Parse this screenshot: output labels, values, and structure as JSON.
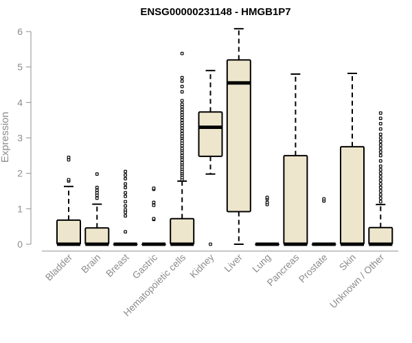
{
  "chart_data": {
    "type": "box",
    "title": "ENSG00000231148 - HMGB1P7",
    "xlabel": "",
    "ylabel": "Expression",
    "ylim": [
      0,
      6.2
    ],
    "yticks": [
      "0",
      "1",
      "2",
      "3",
      "4",
      "5",
      "6"
    ],
    "box_fill": "#ede6cc",
    "categories": [
      "Bladder",
      "Brain",
      "Breast",
      "Gastric",
      "Hematopoietic cells",
      "Kidney",
      "Liver",
      "Lung",
      "Pancreas",
      "Prostate",
      "Skin",
      "Unknown / Other"
    ],
    "boxes": [
      {
        "q1": 0,
        "median": 0,
        "q3": 0.68,
        "whisker_low": 0,
        "whisker_high": 1.63,
        "outliers": [
          1.78,
          1.82,
          2.38,
          2.45
        ]
      },
      {
        "q1": 0,
        "median": 0,
        "q3": 0.46,
        "whisker_low": 0,
        "whisker_high": 1.13,
        "outliers": [
          1.3,
          1.38,
          1.45,
          1.52,
          1.6,
          1.98
        ]
      },
      {
        "q1": 0,
        "median": 0,
        "q3": 0,
        "whisker_low": 0,
        "whisker_high": 0,
        "outliers": [
          0.35,
          0.8,
          0.9,
          0.97,
          1.08,
          1.2,
          1.35,
          1.45,
          1.6,
          1.7,
          1.85,
          1.95,
          2.05
        ]
      },
      {
        "q1": 0,
        "median": 0,
        "q3": 0,
        "whisker_low": 0,
        "whisker_high": 0,
        "outliers": [
          0.7,
          0.72,
          1.1,
          1.18,
          1.55,
          1.58
        ]
      },
      {
        "q1": 0,
        "median": 0,
        "q3": 0.72,
        "whisker_low": 0,
        "whisker_high": 1.78,
        "outliers": [
          1.82,
          1.88,
          1.95,
          2.0,
          2.05,
          2.12,
          2.18,
          2.25,
          2.3,
          2.38,
          2.45,
          2.5,
          2.58,
          2.65,
          2.7,
          2.78,
          2.85,
          2.92,
          3.0,
          3.05,
          3.12,
          3.2,
          3.28,
          3.35,
          3.42,
          3.5,
          3.58,
          3.65,
          3.72,
          3.8,
          3.88,
          3.95,
          4.05,
          4.3,
          4.45,
          4.6,
          4.7,
          5.38
        ]
      },
      {
        "q1": 2.48,
        "median": 3.3,
        "q3": 3.73,
        "whisker_low": 1.98,
        "whisker_high": 4.9,
        "outliers": [
          0
        ]
      },
      {
        "q1": 0.92,
        "median": 4.55,
        "q3": 5.2,
        "whisker_low": 0,
        "whisker_high": 6.08,
        "outliers": []
      },
      {
        "q1": 0,
        "median": 0,
        "q3": 0,
        "whisker_low": 0,
        "whisker_high": 0,
        "outliers": [
          1.12,
          1.18,
          1.28,
          1.32
        ]
      },
      {
        "q1": 0,
        "median": 0,
        "q3": 2.5,
        "whisker_low": 0,
        "whisker_high": 4.8,
        "outliers": []
      },
      {
        "q1": 0,
        "median": 0,
        "q3": 0,
        "whisker_low": 0,
        "whisker_high": 0,
        "outliers": [
          1.22,
          1.28
        ]
      },
      {
        "q1": 0,
        "median": 0,
        "q3": 2.75,
        "whisker_low": 0,
        "whisker_high": 4.82,
        "outliers": []
      },
      {
        "q1": 0,
        "median": 0,
        "q3": 0.47,
        "whisker_low": 0,
        "whisker_high": 1.12,
        "outliers": [
          1.2,
          1.3,
          1.4,
          1.5,
          1.6,
          1.7,
          1.8,
          1.9,
          2.0,
          2.1,
          2.2,
          2.35,
          2.5,
          2.6,
          2.7,
          2.8,
          2.9,
          3.0,
          3.1,
          3.25,
          3.4,
          3.55,
          3.7
        ]
      }
    ]
  }
}
